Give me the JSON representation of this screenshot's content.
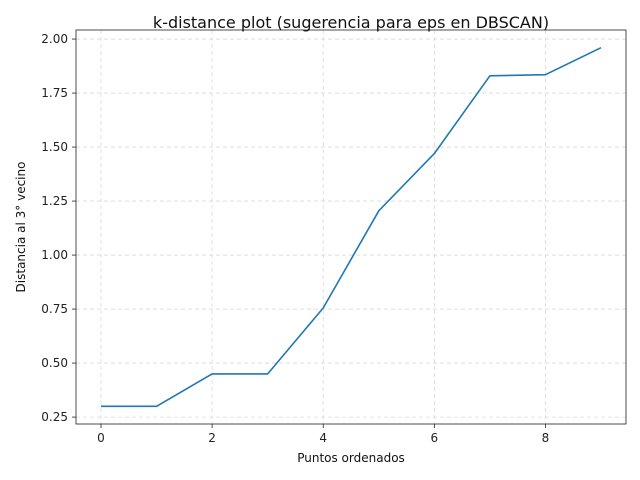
{
  "chart_data": {
    "type": "line",
    "title": "k-distance plot (sugerencia para eps en DBSCAN)",
    "xlabel": "Puntos ordenados",
    "ylabel": "Distancia al 3° vecino",
    "x": [
      0,
      1,
      2,
      3,
      4,
      5,
      6,
      7,
      8,
      9
    ],
    "series": [
      {
        "values": [
          0.3,
          0.3,
          0.45,
          0.45,
          0.755,
          1.205,
          1.47,
          1.83,
          1.835,
          1.96
        ],
        "color": "#1f77b4"
      }
    ],
    "xlim": [
      -0.45,
      9.45
    ],
    "ylim": [
      0.218,
      2.042
    ],
    "xticks": [
      0,
      2,
      4,
      6,
      8
    ],
    "xtick_labels": [
      "0",
      "2",
      "4",
      "6",
      "8"
    ],
    "yticks": [
      0.25,
      0.5,
      0.75,
      1.0,
      1.25,
      1.5,
      1.75,
      2.0
    ],
    "ytick_labels": [
      "0.25",
      "0.50",
      "0.75",
      "1.00",
      "1.25",
      "1.50",
      "1.75",
      "2.00"
    ],
    "grid": true,
    "legend": false
  }
}
